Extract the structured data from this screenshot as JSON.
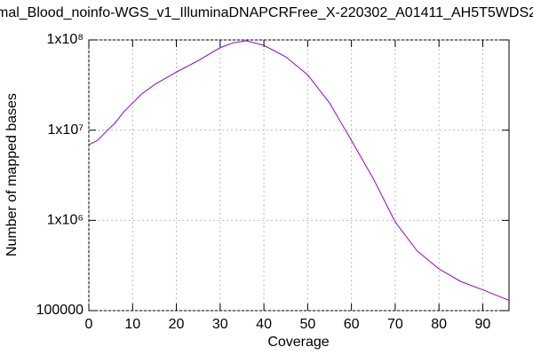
{
  "chart_data": {
    "type": "line",
    "title": "mal_Blood_noinfo-WGS_v1_IlluminaDNAPCRFree_X-220302_A01411_AH5T5WDS2",
    "x_label": "Coverage",
    "y_label": "Number of mapped bases",
    "log_y": true,
    "grid": true,
    "xlim": [
      0,
      96
    ],
    "xticks": [
      0,
      10,
      20,
      30,
      40,
      50,
      60,
      70,
      80,
      90
    ],
    "ylim": [
      100000,
      100000000
    ],
    "yticks": [
      100000,
      {
        "value": 1000000,
        "label": "1x10⁶"
      },
      {
        "value": 10000000,
        "label": "1x10⁷"
      },
      {
        "value": 100000000,
        "label": "1x10⁸"
      }
    ],
    "x": [
      0,
      2,
      4,
      6,
      8,
      10,
      12,
      15,
      20,
      25,
      30,
      33,
      36,
      40,
      45,
      50,
      55,
      60,
      65,
      70,
      75,
      80,
      85,
      90,
      96
    ],
    "series": [
      {
        "color": "#9400d3",
        "values": [
          6900000,
          7700000,
          9700000,
          12000000,
          16000000,
          20000000,
          25000000,
          32000000,
          44000000,
          59000000,
          82000000,
          93000000,
          98000000,
          87000000,
          65000000,
          41000000,
          20000000,
          7700000,
          2900000,
          960000,
          460000,
          290000,
          210000,
          170000,
          130000
        ]
      }
    ]
  }
}
